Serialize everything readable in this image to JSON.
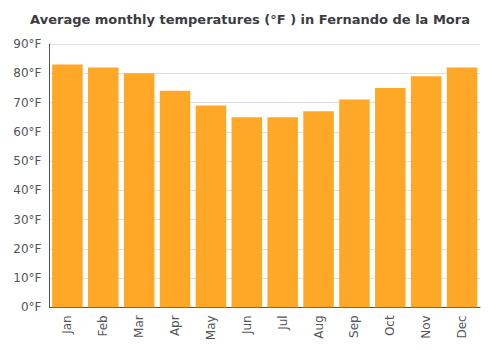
{
  "chart_data": {
    "type": "bar",
    "title": "Average monthly temperatures (°F ) in Fernando de la Mora",
    "categories": [
      "Jan",
      "Feb",
      "Mar",
      "Apr",
      "May",
      "Jun",
      "Jul",
      "Aug",
      "Sep",
      "Oct",
      "Nov",
      "Dec"
    ],
    "values": [
      83,
      82,
      80,
      74,
      69,
      65,
      65,
      67,
      71,
      75,
      79,
      82
    ],
    "color": "#FFA726",
    "ylim": [
      0,
      90
    ],
    "yticks": [
      {
        "value": 0,
        "label": "0°F"
      },
      {
        "value": 10,
        "label": "10°F"
      },
      {
        "value": 20,
        "label": "20°F"
      },
      {
        "value": 30,
        "label": "30°F"
      },
      {
        "value": 40,
        "label": "40°F"
      },
      {
        "value": 50,
        "label": "50°F"
      },
      {
        "value": 60,
        "label": "60°F"
      },
      {
        "value": 70,
        "label": "70°F"
      },
      {
        "value": 80,
        "label": "80°F"
      },
      {
        "value": 90,
        "label": "90°F"
      }
    ],
    "grid": true
  }
}
